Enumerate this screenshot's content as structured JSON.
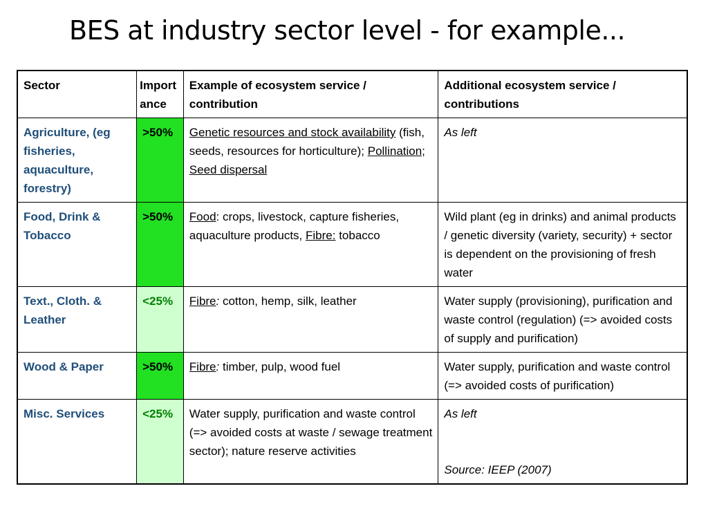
{
  "title": "BES at industry sector level - for example...",
  "table": {
    "headers": {
      "sector": "Sector",
      "importance": "Import ance",
      "example": "Example of ecosystem service / contribution",
      "additional": "Additional ecosystem service / contributions"
    },
    "rows": [
      {
        "sector": "Agriculture, (eg  fisheries, aquaculture, forestry)",
        "importance": ">50%",
        "importance_level": "high",
        "example": {
          "u1": "Genetic resources and stock availability",
          "t1": " (fish, seeds, resources for horticulture); ",
          "u2": "Pollination; Seed dispersal"
        },
        "additional": "As left"
      },
      {
        "sector": "Food, Drink   & Tobacco",
        "importance": ">50%",
        "importance_level": "high",
        "example": {
          "u1": "Food",
          "t1": ": crops, livestock, capture fisheries, aquaculture products, ",
          "u2": "Fibre:",
          "t2": " tobacco"
        },
        "additional": "Wild plant (eg in drinks) and animal products  / genetic diversity (variety, security) + sector is dependent on the provisioning of fresh water"
      },
      {
        "sector": "Text., Cloth. & Leather",
        "importance": "<25%",
        "importance_level": "low",
        "example": {
          "u1": "Fibre",
          "i1": ":",
          "t1": " cotton, hemp, silk, leather"
        },
        "additional": "Water supply (provisioning), purification and waste control (regulation) (=> avoided costs of supply and purification)"
      },
      {
        "sector": "Wood & Paper",
        "importance": ">50%",
        "importance_level": "high",
        "example": {
          "u1": "Fibre",
          "i1": ":",
          "t1": " timber, pulp, wood fuel"
        },
        "additional": "Water supply, purification and waste control (=> avoided costs of purification)"
      },
      {
        "sector": "Misc. Services",
        "importance": "<25%",
        "importance_level": "low",
        "example": {
          "t1": "Water supply, purification and waste control (=> avoided costs at waste / sewage treatment sector); nature reserve activities"
        },
        "additional": "As left",
        "source": "Source: IEEP (2007)"
      }
    ]
  },
  "colors": {
    "high_importance_bg": "#22e022",
    "low_importance_bg": "#cfffcf",
    "sector_text": "#1f4e79",
    "low_importance_text": "#008000"
  }
}
